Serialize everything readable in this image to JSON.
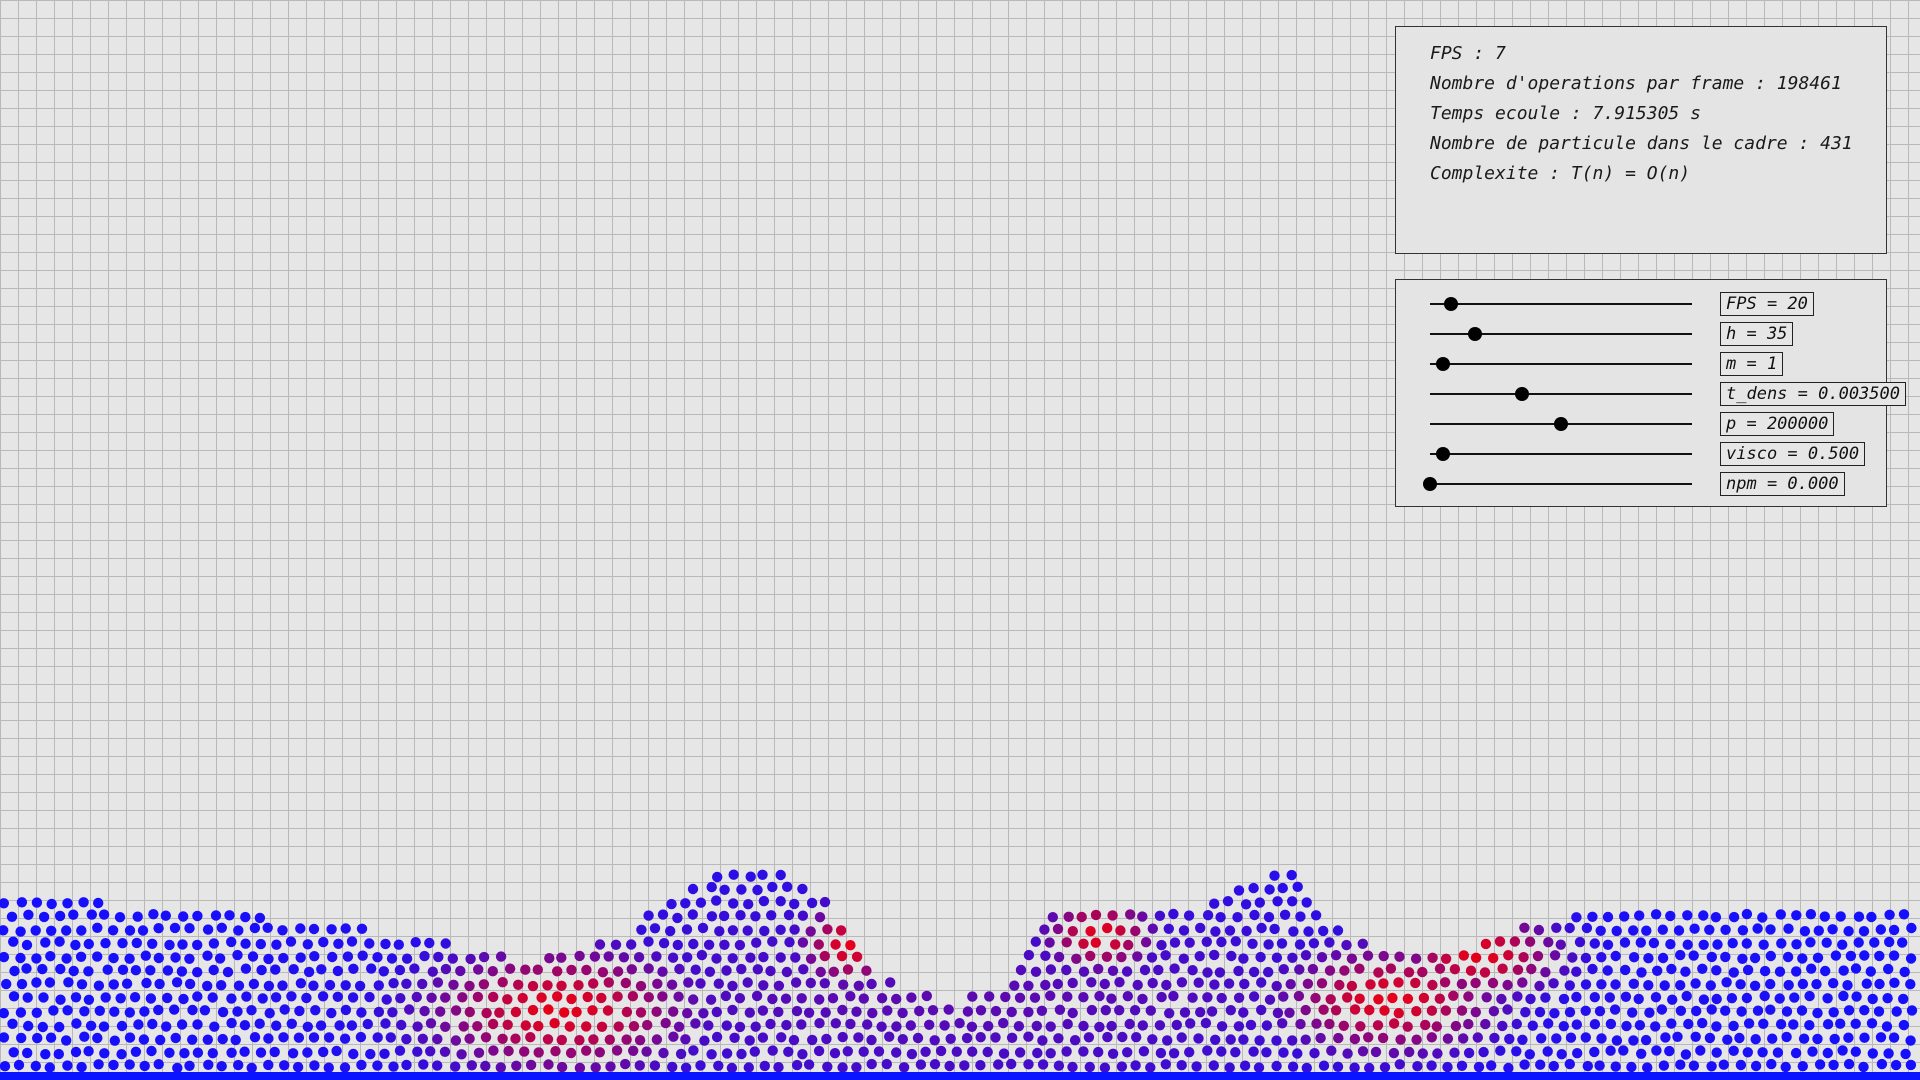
{
  "stats": {
    "fps": "FPS : 7",
    "operations": "Nombre d'operations par frame : 198461",
    "elapsed": "Temps ecoule : 7.915305 s",
    "particles": "Nombre de particule dans le cadre : 431",
    "complexity": "Complexite : T(n) = O(n)"
  },
  "sliders": [
    {
      "label": "FPS = 20",
      "level": 0.08
    },
    {
      "label": "h = 35",
      "level": 0.17
    },
    {
      "label": "m = 1",
      "level": 0.05
    },
    {
      "label": "t_dens = 0.003500",
      "level": 0.35
    },
    {
      "label": "p = 200000",
      "level": 0.5
    },
    {
      "label": "visco = 0.500",
      "level": 0.05
    },
    {
      "label": "npm = 0.000",
      "level": 0.0
    }
  ],
  "colors": {
    "background": "#e6e6e6",
    "grid": "#b9b9b9",
    "particle_low_density": "#1414ff",
    "particle_high_density": "#e60014"
  }
}
